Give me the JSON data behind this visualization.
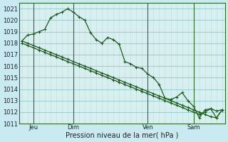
{
  "background_color": "#c8eaf0",
  "plot_bg_color": "#d8eff0",
  "grid_minor_color": "#b8dde0",
  "grid_major_color": "#90c8cc",
  "line_color": "#1a5c1a",
  "marker_color": "#1a5c1a",
  "xlabel": "Pression niveau de la mer( hPa )",
  "ylim": [
    1011,
    1021.5
  ],
  "yticks": [
    1011,
    1012,
    1013,
    1014,
    1015,
    1016,
    1017,
    1018,
    1019,
    1020,
    1021
  ],
  "xtick_labels": [
    "Jeu",
    "Dim",
    "Ven",
    "Sam"
  ],
  "xtick_positions": [
    2,
    9,
    22,
    30
  ],
  "vline_positions": [
    2,
    9,
    22,
    30
  ],
  "n_points": 36,
  "series1": [
    1018.2,
    1018.7,
    1018.8,
    1019.0,
    1019.2,
    1020.2,
    1020.5,
    1020.7,
    1021.0,
    1020.7,
    1020.3,
    1020.0,
    1018.9,
    1018.3,
    1018.0,
    1018.5,
    1018.3,
    1017.9,
    1016.4,
    1016.2,
    1015.9,
    1015.8,
    1015.3,
    1015.0,
    1014.4,
    1013.2,
    1013.1,
    1013.3,
    1013.7,
    1013.0,
    1012.5,
    1011.5,
    1012.2,
    1012.3,
    1011.5,
    1012.2
  ],
  "series2": [
    1018.0,
    1017.8,
    1017.6,
    1017.4,
    1017.2,
    1017.0,
    1016.8,
    1016.6,
    1016.4,
    1016.2,
    1016.0,
    1015.8,
    1015.6,
    1015.4,
    1015.2,
    1015.0,
    1014.8,
    1014.6,
    1014.4,
    1014.2,
    1014.0,
    1013.8,
    1013.6,
    1013.4,
    1013.2,
    1013.0,
    1012.8,
    1012.6,
    1012.4,
    1012.2,
    1012.0,
    1011.8,
    1012.0,
    1012.3,
    1012.1,
    1012.2
  ],
  "series3": [
    1018.2,
    1018.0,
    1017.8,
    1017.6,
    1017.4,
    1017.2,
    1017.0,
    1016.8,
    1016.6,
    1016.4,
    1016.2,
    1016.0,
    1015.8,
    1015.6,
    1015.4,
    1015.2,
    1015.0,
    1014.8,
    1014.6,
    1014.4,
    1014.2,
    1014.0,
    1013.8,
    1013.6,
    1013.4,
    1013.2,
    1013.0,
    1012.8,
    1012.6,
    1012.4,
    1012.2,
    1012.0,
    1011.8,
    1011.6,
    1011.5,
    1012.2
  ]
}
